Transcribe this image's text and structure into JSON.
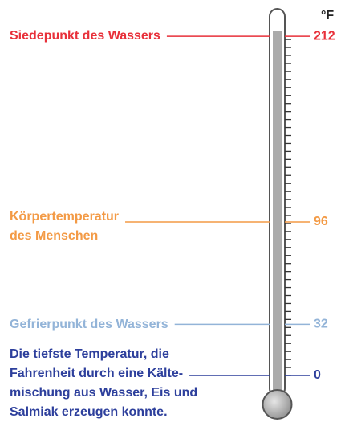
{
  "unit": "°F",
  "markers": [
    {
      "label": [
        "Siedepunkt des Wassers"
      ],
      "value": 212,
      "color": "#e8303a"
    },
    {
      "label": [
        "Körpertemperatur",
        "des Menschen"
      ],
      "value": 96,
      "color": "#f39a45"
    },
    {
      "label": [
        "Gefrierpunkt des Wassers"
      ],
      "value": 32,
      "color": "#93b4d8"
    },
    {
      "label": [
        "Die tiefste Temperatur, die",
        "Fahrenheit durch eine Kälte-",
        "mischung aus Wasser, Eis und",
        "Salmiak erzeugen konnte."
      ],
      "value": 0,
      "color": "#2d3f9c"
    }
  ]
}
